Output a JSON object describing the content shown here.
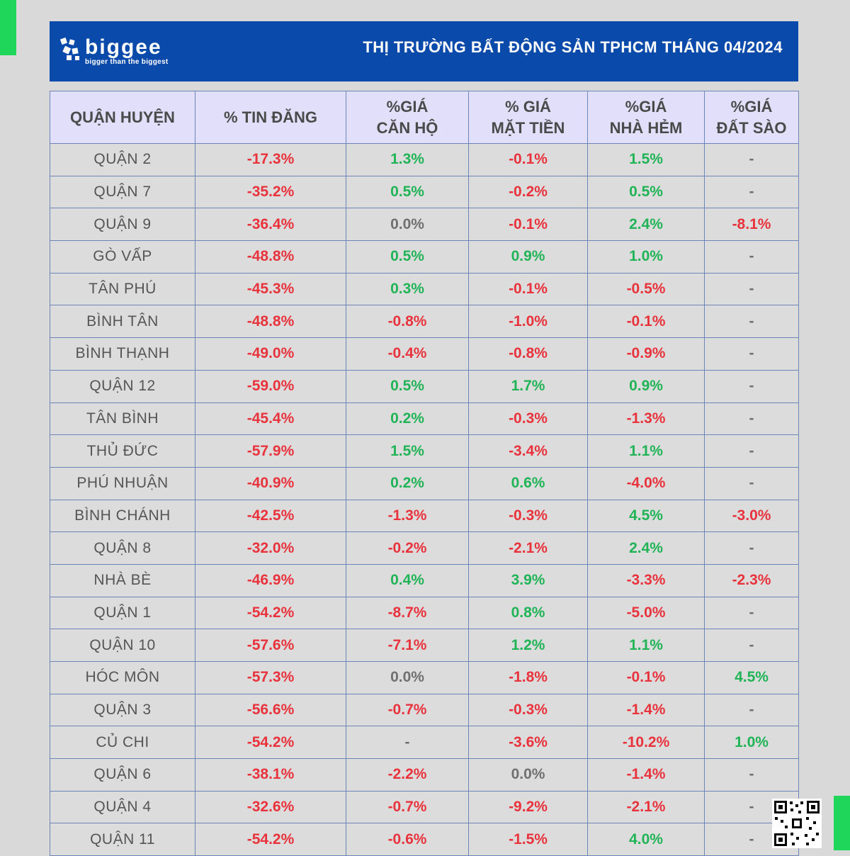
{
  "colors": {
    "accent_green": "#1fd65a",
    "header_blue": "#0a4aaa",
    "negative": "#e8333d",
    "positive": "#21b457"
  },
  "brand": {
    "name": "biggee",
    "tagline": "bigger than the biggest"
  },
  "header": {
    "title": "THỊ TRƯỜNG BẤT ĐỘNG SẢN TPHCM THÁNG 04/2024"
  },
  "table": {
    "columns": [
      [
        "QUẬN HUYỆN"
      ],
      [
        "% TIN ĐĂNG"
      ],
      [
        "%GIÁ",
        "CĂN HỘ"
      ],
      [
        "% GIÁ",
        "MẶT TIỀN"
      ],
      [
        "%GIÁ",
        "NHÀ HẺM"
      ],
      [
        "%GIÁ",
        "ĐẤT SÀO"
      ]
    ],
    "rows": [
      [
        "QUẬN 2",
        "-17.3%",
        "1.3%",
        "-0.1%",
        "1.5%",
        "-"
      ],
      [
        "QUẬN 7",
        "-35.2%",
        "0.5%",
        "-0.2%",
        "0.5%",
        "-"
      ],
      [
        "QUẬN 9",
        "-36.4%",
        "0.0%",
        "-0.1%",
        "2.4%",
        "-8.1%"
      ],
      [
        "GÒ VẤP",
        "-48.8%",
        "0.5%",
        "0.9%",
        "1.0%",
        "-"
      ],
      [
        "TÂN PHÚ",
        "-45.3%",
        "0.3%",
        "-0.1%",
        "-0.5%",
        "-"
      ],
      [
        "BÌNH TÂN",
        "-48.8%",
        "-0.8%",
        "-1.0%",
        "-0.1%",
        "-"
      ],
      [
        "BÌNH THẠNH",
        "-49.0%",
        "-0.4%",
        "-0.8%",
        "-0.9%",
        "-"
      ],
      [
        "QUẬN 12",
        "-59.0%",
        "0.5%",
        "1.7%",
        "0.9%",
        "-"
      ],
      [
        "TÂN BÌNH",
        "-45.4%",
        "0.2%",
        "-0.3%",
        "-1.3%",
        "-"
      ],
      [
        "THỦ ĐỨC",
        "-57.9%",
        "1.5%",
        "-3.4%",
        "1.1%",
        "-"
      ],
      [
        "PHÚ NHUẬN",
        "-40.9%",
        "0.2%",
        "0.6%",
        "-4.0%",
        "-"
      ],
      [
        "BÌNH CHÁNH",
        "-42.5%",
        "-1.3%",
        "-0.3%",
        "4.5%",
        "-3.0%"
      ],
      [
        "QUẬN 8",
        "-32.0%",
        "-0.2%",
        "-2.1%",
        "2.4%",
        "-"
      ],
      [
        "NHÀ BÈ",
        "-46.9%",
        "0.4%",
        "3.9%",
        "-3.3%",
        "-2.3%"
      ],
      [
        "QUẬN 1",
        "-54.2%",
        "-8.7%",
        "0.8%",
        "-5.0%",
        "-"
      ],
      [
        "QUẬN 10",
        "-57.6%",
        "-7.1%",
        "1.2%",
        "1.1%",
        "-"
      ],
      [
        "HÓC MÔN",
        "-57.3%",
        "0.0%",
        "-1.8%",
        "-0.1%",
        "4.5%"
      ],
      [
        "QUẬN 3",
        "-56.6%",
        "-0.7%",
        "-0.3%",
        "-1.4%",
        "-"
      ],
      [
        "CỦ CHI",
        "-54.2%",
        "-",
        "-3.6%",
        "-10.2%",
        "1.0%"
      ],
      [
        "QUẬN 6",
        "-38.1%",
        "-2.2%",
        "0.0%",
        "-1.4%",
        "-"
      ],
      [
        "QUẬN 4",
        "-32.6%",
        "-0.7%",
        "-9.2%",
        "-2.1%",
        "-"
      ],
      [
        "QUẬN 11",
        "-54.2%",
        "-0.6%",
        "-1.5%",
        "4.0%",
        "-"
      ]
    ]
  },
  "qr": {
    "icon": "qr-code-icon"
  }
}
